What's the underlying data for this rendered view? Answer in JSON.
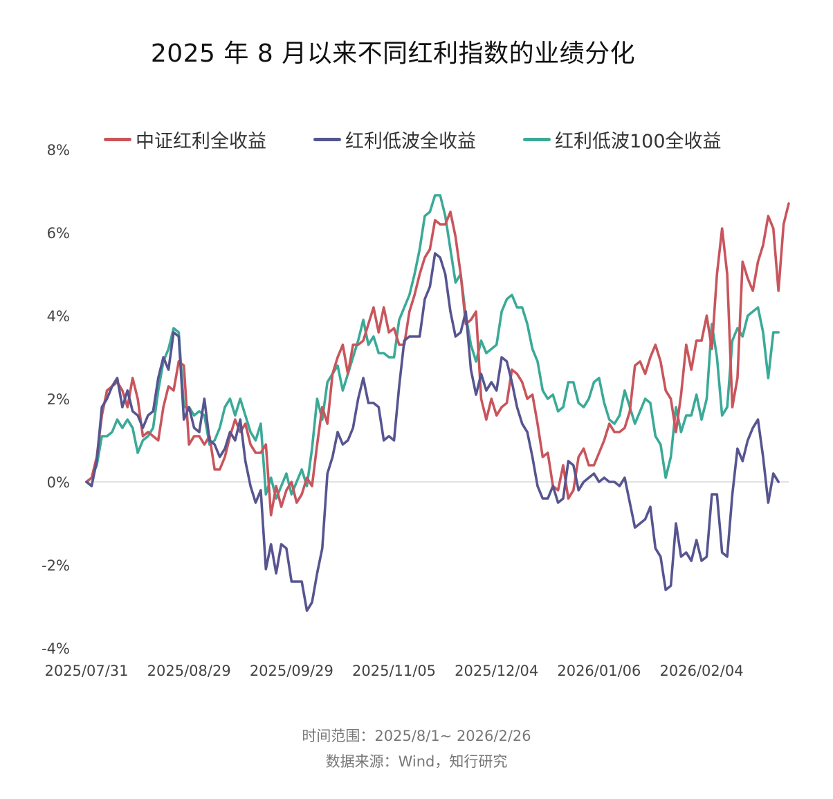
{
  "chart_data": {
    "type": "line",
    "title": "2025 年 8 月以来不同红利指数的业绩分化",
    "xlabel": "",
    "ylabel": "",
    "ylim": [
      -4,
      8
    ],
    "y_ticks": [
      -4,
      -2,
      0,
      2,
      4,
      6,
      8
    ],
    "y_tick_labels": [
      "-4%",
      "-2%",
      "0%",
      "2%",
      "4%",
      "6%",
      "8%"
    ],
    "x_tick_labels": [
      "2025/07/31",
      "2025/08/29",
      "2025/09/29",
      "2025/11/05",
      "2025/12/04",
      "2026/01/06",
      "2026/02/04"
    ],
    "x_tick_indices": [
      0,
      20,
      40,
      60,
      80,
      100,
      120
    ],
    "legend_position": "top",
    "series": [
      {
        "name": "中证红利全收益",
        "color": "#c9555c",
        "values": [
          0.0,
          0.1,
          0.6,
          1.6,
          2.2,
          2.3,
          2.4,
          2.2,
          1.8,
          2.5,
          2.0,
          1.1,
          1.2,
          1.1,
          1.0,
          1.8,
          2.3,
          2.2,
          2.9,
          2.8,
          0.9,
          1.1,
          1.1,
          0.9,
          1.1,
          0.3,
          0.3,
          0.6,
          1.1,
          1.5,
          1.2,
          1.4,
          0.9,
          0.7,
          0.7,
          0.9,
          -0.8,
          -0.1,
          -0.6,
          -0.2,
          0.0,
          -0.5,
          -0.3,
          0.1,
          -0.1,
          0.9,
          1.8,
          1.4,
          2.6,
          3.0,
          3.3,
          2.6,
          3.3,
          3.3,
          3.4,
          3.8,
          4.2,
          3.6,
          4.2,
          3.6,
          3.7,
          3.3,
          3.3,
          4.1,
          4.5,
          5.0,
          5.4,
          5.6,
          6.3,
          6.2,
          6.2,
          6.5,
          5.9,
          5.0,
          3.8,
          3.9,
          4.1,
          2.0,
          1.5,
          2.0,
          1.6,
          1.8,
          1.9,
          2.7,
          2.6,
          2.4,
          2.0,
          2.1,
          1.4,
          0.6,
          0.7,
          -0.1,
          -0.2,
          0.4,
          -0.4,
          -0.2,
          0.6,
          0.8,
          0.4,
          0.4,
          0.7,
          1.0,
          1.4,
          1.2,
          1.2,
          1.3,
          1.7,
          2.8,
          2.9,
          2.6,
          3.0,
          3.3,
          2.9,
          2.2,
          2.0,
          1.2,
          2.1,
          3.3,
          2.7,
          3.4,
          3.4,
          4.0,
          3.2,
          5.0,
          6.1,
          5.0,
          1.8,
          2.5,
          5.3,
          4.9,
          4.6,
          5.3,
          5.7,
          6.4,
          6.1,
          4.6,
          6.2,
          6.7
        ]
      },
      {
        "name": "红利低波全收益",
        "color": "#565590",
        "values": [
          0.0,
          -0.1,
          0.5,
          1.8,
          2.0,
          2.3,
          2.5,
          1.8,
          2.2,
          1.7,
          1.6,
          1.3,
          1.6,
          1.7,
          2.5,
          3.0,
          2.7,
          3.6,
          3.5,
          1.5,
          1.8,
          1.3,
          1.2,
          2.0,
          1.0,
          0.9,
          0.6,
          0.8,
          1.2,
          1.0,
          1.5,
          0.5,
          -0.1,
          -0.5,
          -0.2,
          -2.1,
          -1.5,
          -2.2,
          -1.5,
          -1.6,
          -2.4,
          -2.4,
          -2.4,
          -3.1,
          -2.9,
          -2.2,
          -1.6,
          0.2,
          0.6,
          1.2,
          0.9,
          1.0,
          1.3,
          2.0,
          2.5,
          1.9,
          1.9,
          1.8,
          1.0,
          1.1,
          1.0,
          2.3,
          3.4,
          3.5,
          3.5,
          3.5,
          4.4,
          4.7,
          5.5,
          5.4,
          5.0,
          4.1,
          3.5,
          3.6,
          4.1,
          2.7,
          2.1,
          2.6,
          2.2,
          2.4,
          2.2,
          3.0,
          2.9,
          2.4,
          1.8,
          1.4,
          1.2,
          0.6,
          -0.1,
          -0.4,
          -0.4,
          -0.1,
          -0.5,
          -0.4,
          0.5,
          0.4,
          -0.2,
          0.0,
          0.1,
          0.2,
          0.0,
          0.1,
          0.0,
          0.0,
          -0.1,
          0.1,
          -0.5,
          -1.1,
          -1.0,
          -0.9,
          -0.6,
          -1.6,
          -1.8,
          -2.6,
          -2.5,
          -1.0,
          -1.8,
          -1.7,
          -1.9,
          -1.4,
          -1.9,
          -1.8,
          -0.3,
          -0.3,
          -1.7,
          -1.8,
          -0.3,
          0.8,
          0.5,
          1.0,
          1.3,
          1.5,
          0.6,
          -0.5,
          0.2,
          0.0
        ]
      },
      {
        "name": "红利低波100全收益",
        "color": "#3aaa97",
        "values": [
          0.0,
          0.1,
          0.4,
          1.1,
          1.1,
          1.2,
          1.5,
          1.3,
          1.5,
          1.3,
          0.7,
          1.0,
          1.1,
          1.3,
          2.2,
          2.9,
          3.2,
          3.7,
          3.6,
          1.8,
          1.8,
          1.6,
          1.7,
          1.6,
          0.9,
          1.0,
          1.3,
          1.8,
          2.0,
          1.6,
          2.0,
          1.6,
          1.2,
          1.0,
          1.4,
          -0.3,
          0.1,
          -0.4,
          -0.1,
          0.2,
          -0.3,
          0.0,
          0.3,
          -0.1,
          0.8,
          2.0,
          1.5,
          2.4,
          2.6,
          2.8,
          2.2,
          2.6,
          3.0,
          3.4,
          3.9,
          3.3,
          3.5,
          3.1,
          3.1,
          3.0,
          3.0,
          3.9,
          4.2,
          4.5,
          5.0,
          5.6,
          6.4,
          6.5,
          6.9,
          6.9,
          6.4,
          5.6,
          4.8,
          5.0,
          4.0,
          3.3,
          2.9,
          3.4,
          3.1,
          3.2,
          3.3,
          4.1,
          4.4,
          4.5,
          4.2,
          4.2,
          3.8,
          3.2,
          2.9,
          2.2,
          2.0,
          2.1,
          1.7,
          1.8,
          2.4,
          2.4,
          1.9,
          1.8,
          2.0,
          2.4,
          2.5,
          1.9,
          1.5,
          1.4,
          1.6,
          2.2,
          1.8,
          1.4,
          1.7,
          2.0,
          1.9,
          1.1,
          0.9,
          0.1,
          0.6,
          1.8,
          1.2,
          1.6,
          1.6,
          2.1,
          1.5,
          2.0,
          3.8,
          3.0,
          1.6,
          1.8,
          3.4,
          3.7,
          3.5,
          4.0,
          4.1,
          4.2,
          3.6,
          2.5,
          3.6,
          3.6
        ]
      }
    ]
  },
  "footer": {
    "time_range": "时间范围：2025/8/1~ 2026/2/26",
    "source": "数据来源：Wind，知行研究"
  }
}
